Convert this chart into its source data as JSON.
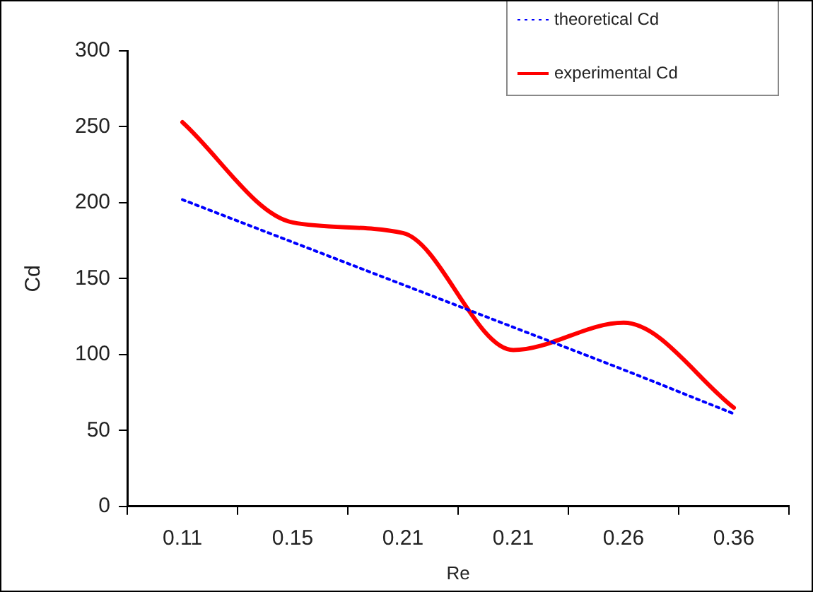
{
  "chart_data": {
    "type": "line",
    "xlabel": "Re",
    "ylabel": "Cd",
    "categories": [
      "0.11",
      "0.15",
      "0.21",
      "0.21",
      "0.26",
      "0.36"
    ],
    "series": [
      {
        "name": "theoretical Cd",
        "color": "#0000ff",
        "line_style": "dotted",
        "values": [
          202,
          174,
          146,
          118,
          90,
          61
        ]
      },
      {
        "name": "experimental Cd",
        "color": "#ff0000",
        "line_style": "solid",
        "values": [
          253,
          187,
          180,
          103,
          121,
          65
        ]
      }
    ],
    "ylim": [
      0,
      300
    ],
    "yticks": [
      0,
      50,
      100,
      150,
      200,
      250,
      300
    ],
    "grid": false,
    "legend": "top right",
    "marker": "none"
  }
}
